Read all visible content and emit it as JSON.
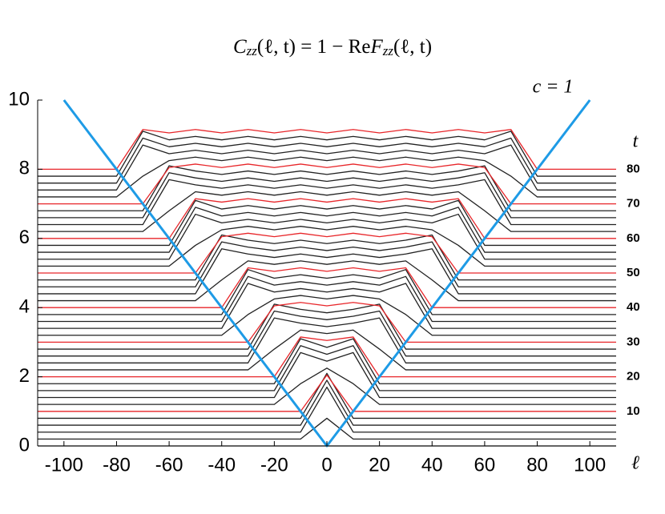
{
  "chart_data": {
    "type": "line",
    "title_parts": [
      "C",
      "zz",
      "(ℓ, t) = 1 − Re",
      "F",
      "zz",
      "(ℓ, t)"
    ],
    "annotation": "c = 1",
    "x_label": "ℓ",
    "y2_label": "t",
    "xlim": [
      -110,
      110
    ],
    "ylim": [
      0,
      10
    ],
    "y2lim": [
      0,
      100
    ],
    "xticks": [
      -100,
      -80,
      -60,
      -40,
      -20,
      0,
      20,
      40,
      60,
      80,
      100
    ],
    "yticks": [
      0,
      2,
      4,
      6,
      8,
      10
    ],
    "y2ticks": [
      10,
      20,
      30,
      40,
      50,
      60,
      70,
      80
    ],
    "lightcone": {
      "color": "#1e9be6",
      "x": [
        -100,
        0,
        100
      ],
      "values": [
        10,
        0,
        10
      ]
    },
    "x": [
      -110,
      -100,
      -90,
      -80,
      -70,
      -60,
      -50,
      -40,
      -30,
      -20,
      -10,
      0,
      10,
      20,
      30,
      40,
      50,
      60,
      70,
      80,
      90,
      100,
      110
    ],
    "series": [
      {
        "color": "#222222",
        "values": [
          0,
          0,
          0,
          0,
          0,
          0,
          0,
          0,
          0,
          0,
          0,
          0,
          0,
          0,
          0,
          0,
          0,
          0,
          0,
          0,
          0,
          0,
          0
        ]
      },
      {
        "color": "#222222",
        "values": [
          0.2,
          0.2,
          0.2,
          0.2,
          0.2,
          0.2,
          0.2,
          0.2,
          0.2,
          0.2,
          0.2,
          0.8,
          0.2,
          0.2,
          0.2,
          0.2,
          0.2,
          0.2,
          0.2,
          0.2,
          0.2,
          0.2,
          0.2
        ]
      },
      {
        "color": "#222222",
        "values": [
          0.4,
          0.4,
          0.4,
          0.4,
          0.4,
          0.4,
          0.4,
          0.4,
          0.4,
          0.4,
          0.4,
          1.7,
          0.4,
          0.4,
          0.4,
          0.4,
          0.4,
          0.4,
          0.4,
          0.4,
          0.4,
          0.4,
          0.4
        ]
      },
      {
        "color": "#222222",
        "values": [
          0.6,
          0.6,
          0.6,
          0.6,
          0.6,
          0.6,
          0.6,
          0.6,
          0.6,
          0.6,
          0.6,
          1.9,
          0.6,
          0.6,
          0.6,
          0.6,
          0.6,
          0.6,
          0.6,
          0.6,
          0.6,
          0.6,
          0.6
        ]
      },
      {
        "color": "#222222",
        "values": [
          0.8,
          0.8,
          0.8,
          0.8,
          0.8,
          0.8,
          0.8,
          0.8,
          0.8,
          0.8,
          0.8,
          2.1,
          0.8,
          0.8,
          0.8,
          0.8,
          0.8,
          0.8,
          0.8,
          0.8,
          0.8,
          0.8,
          0.8
        ]
      },
      {
        "color": "#e8262a",
        "values": [
          1,
          1,
          1,
          1,
          1,
          1,
          1,
          1,
          1,
          1,
          1,
          2.05,
          1,
          1,
          1,
          1,
          1,
          1,
          1,
          1,
          1,
          1,
          1
        ]
      },
      {
        "color": "#222222",
        "values": [
          1.2,
          1.2,
          1.2,
          1.2,
          1.2,
          1.2,
          1.2,
          1.2,
          1.2,
          1.2,
          1.8,
          2.25,
          1.8,
          1.2,
          1.2,
          1.2,
          1.2,
          1.2,
          1.2,
          1.2,
          1.2,
          1.2,
          1.2
        ]
      },
      {
        "color": "#222222",
        "values": [
          1.4,
          1.4,
          1.4,
          1.4,
          1.4,
          1.4,
          1.4,
          1.4,
          1.4,
          1.4,
          2.7,
          2.45,
          2.7,
          1.4,
          1.4,
          1.4,
          1.4,
          1.4,
          1.4,
          1.4,
          1.4,
          1.4,
          1.4
        ]
      },
      {
        "color": "#222222",
        "values": [
          1.6,
          1.6,
          1.6,
          1.6,
          1.6,
          1.6,
          1.6,
          1.6,
          1.6,
          1.6,
          2.9,
          2.65,
          2.9,
          1.6,
          1.6,
          1.6,
          1.6,
          1.6,
          1.6,
          1.6,
          1.6,
          1.6,
          1.6
        ]
      },
      {
        "color": "#222222",
        "values": [
          1.8,
          1.8,
          1.8,
          1.8,
          1.8,
          1.8,
          1.8,
          1.8,
          1.8,
          1.8,
          3.1,
          2.85,
          3.1,
          1.8,
          1.8,
          1.8,
          1.8,
          1.8,
          1.8,
          1.8,
          1.8,
          1.8,
          1.8
        ]
      },
      {
        "color": "#e8262a",
        "values": [
          2,
          2,
          2,
          2,
          2,
          2,
          2,
          2,
          2,
          2,
          3.15,
          3.05,
          3.15,
          2,
          2,
          2,
          2,
          2,
          2,
          2,
          2,
          2,
          2
        ]
      },
      {
        "color": "#222222",
        "values": [
          2.2,
          2.2,
          2.2,
          2.2,
          2.2,
          2.2,
          2.2,
          2.2,
          2.2,
          2.8,
          3.35,
          3.25,
          3.35,
          2.8,
          2.2,
          2.2,
          2.2,
          2.2,
          2.2,
          2.2,
          2.2,
          2.2,
          2.2
        ]
      },
      {
        "color": "#222222",
        "values": [
          2.4,
          2.4,
          2.4,
          2.4,
          2.4,
          2.4,
          2.4,
          2.4,
          2.4,
          3.7,
          3.55,
          3.45,
          3.55,
          3.7,
          2.4,
          2.4,
          2.4,
          2.4,
          2.4,
          2.4,
          2.4,
          2.4,
          2.4
        ]
      },
      {
        "color": "#222222",
        "values": [
          2.6,
          2.6,
          2.6,
          2.6,
          2.6,
          2.6,
          2.6,
          2.6,
          2.6,
          3.9,
          3.75,
          3.65,
          3.75,
          3.9,
          2.6,
          2.6,
          2.6,
          2.6,
          2.6,
          2.6,
          2.6,
          2.6,
          2.6
        ]
      },
      {
        "color": "#222222",
        "values": [
          2.8,
          2.8,
          2.8,
          2.8,
          2.8,
          2.8,
          2.8,
          2.8,
          2.8,
          4.1,
          3.95,
          3.85,
          3.95,
          4.1,
          2.8,
          2.8,
          2.8,
          2.8,
          2.8,
          2.8,
          2.8,
          2.8,
          2.8
        ]
      },
      {
        "color": "#e8262a",
        "values": [
          3,
          3,
          3,
          3,
          3,
          3,
          3,
          3,
          3,
          4.05,
          4.15,
          4.05,
          4.15,
          4.05,
          3,
          3,
          3,
          3,
          3,
          3,
          3,
          3,
          3
        ]
      },
      {
        "color": "#222222",
        "values": [
          3.2,
          3.2,
          3.2,
          3.2,
          3.2,
          3.2,
          3.2,
          3.2,
          3.8,
          4.25,
          4.35,
          4.25,
          4.35,
          4.25,
          3.8,
          3.2,
          3.2,
          3.2,
          3.2,
          3.2,
          3.2,
          3.2,
          3.2
        ]
      },
      {
        "color": "#222222",
        "values": [
          3.4,
          3.4,
          3.4,
          3.4,
          3.4,
          3.4,
          3.4,
          3.4,
          4.7,
          4.45,
          4.55,
          4.45,
          4.55,
          4.45,
          4.7,
          3.4,
          3.4,
          3.4,
          3.4,
          3.4,
          3.4,
          3.4,
          3.4
        ]
      },
      {
        "color": "#222222",
        "values": [
          3.6,
          3.6,
          3.6,
          3.6,
          3.6,
          3.6,
          3.6,
          3.6,
          4.9,
          4.65,
          4.75,
          4.65,
          4.75,
          4.65,
          4.9,
          3.6,
          3.6,
          3.6,
          3.6,
          3.6,
          3.6,
          3.6,
          3.6
        ]
      },
      {
        "color": "#222222",
        "values": [
          3.8,
          3.8,
          3.8,
          3.8,
          3.8,
          3.8,
          3.8,
          3.8,
          5.1,
          4.85,
          4.95,
          4.85,
          4.95,
          4.85,
          5.1,
          3.8,
          3.8,
          3.8,
          3.8,
          3.8,
          3.8,
          3.8,
          3.8
        ]
      },
      {
        "color": "#e8262a",
        "values": [
          4,
          4,
          4,
          4,
          4,
          4,
          4,
          4,
          5.15,
          5.05,
          5.15,
          5.05,
          5.15,
          5.05,
          5.15,
          4,
          4,
          4,
          4,
          4,
          4,
          4,
          4
        ]
      },
      {
        "color": "#222222",
        "values": [
          4.2,
          4.2,
          4.2,
          4.2,
          4.2,
          4.2,
          4.2,
          4.8,
          5.35,
          5.25,
          5.35,
          5.25,
          5.35,
          5.25,
          5.35,
          4.8,
          4.2,
          4.2,
          4.2,
          4.2,
          4.2,
          4.2,
          4.2
        ]
      },
      {
        "color": "#222222",
        "values": [
          4.4,
          4.4,
          4.4,
          4.4,
          4.4,
          4.4,
          4.4,
          5.7,
          5.55,
          5.45,
          5.55,
          5.45,
          5.55,
          5.45,
          5.55,
          5.7,
          4.4,
          4.4,
          4.4,
          4.4,
          4.4,
          4.4,
          4.4
        ]
      },
      {
        "color": "#222222",
        "values": [
          4.6,
          4.6,
          4.6,
          4.6,
          4.6,
          4.6,
          4.6,
          5.9,
          5.75,
          5.65,
          5.75,
          5.65,
          5.75,
          5.65,
          5.75,
          5.9,
          4.6,
          4.6,
          4.6,
          4.6,
          4.6,
          4.6,
          4.6
        ]
      },
      {
        "color": "#222222",
        "values": [
          4.8,
          4.8,
          4.8,
          4.8,
          4.8,
          4.8,
          4.8,
          6.1,
          5.95,
          5.85,
          5.95,
          5.85,
          5.95,
          5.85,
          5.95,
          6.1,
          4.8,
          4.8,
          4.8,
          4.8,
          4.8,
          4.8,
          4.8
        ]
      },
      {
        "color": "#e8262a",
        "values": [
          5,
          5,
          5,
          5,
          5,
          5,
          5,
          6.05,
          6.15,
          6.05,
          6.15,
          6.05,
          6.15,
          6.05,
          6.15,
          6.05,
          5,
          5,
          5,
          5,
          5,
          5,
          5
        ]
      },
      {
        "color": "#222222",
        "values": [
          5.2,
          5.2,
          5.2,
          5.2,
          5.2,
          5.2,
          5.8,
          6.25,
          6.35,
          6.25,
          6.35,
          6.25,
          6.35,
          6.25,
          6.35,
          6.25,
          5.8,
          5.2,
          5.2,
          5.2,
          5.2,
          5.2,
          5.2
        ]
      },
      {
        "color": "#222222",
        "values": [
          5.4,
          5.4,
          5.4,
          5.4,
          5.4,
          5.4,
          6.7,
          6.45,
          6.55,
          6.45,
          6.55,
          6.45,
          6.55,
          6.45,
          6.55,
          6.45,
          6.7,
          5.4,
          5.4,
          5.4,
          5.4,
          5.4,
          5.4
        ]
      },
      {
        "color": "#222222",
        "values": [
          5.6,
          5.6,
          5.6,
          5.6,
          5.6,
          5.6,
          6.9,
          6.65,
          6.75,
          6.65,
          6.75,
          6.65,
          6.75,
          6.65,
          6.75,
          6.65,
          6.9,
          5.6,
          5.6,
          5.6,
          5.6,
          5.6,
          5.6
        ]
      },
      {
        "color": "#222222",
        "values": [
          5.8,
          5.8,
          5.8,
          5.8,
          5.8,
          5.8,
          7.1,
          6.85,
          6.95,
          6.85,
          6.95,
          6.85,
          6.95,
          6.85,
          6.95,
          6.85,
          7.1,
          5.8,
          5.8,
          5.8,
          5.8,
          5.8,
          5.8
        ]
      },
      {
        "color": "#e8262a",
        "values": [
          6,
          6,
          6,
          6,
          6,
          6,
          7.15,
          7.05,
          7.15,
          7.05,
          7.15,
          7.05,
          7.15,
          7.05,
          7.15,
          7.05,
          7.15,
          6,
          6,
          6,
          6,
          6,
          6
        ]
      },
      {
        "color": "#222222",
        "values": [
          6.2,
          6.2,
          6.2,
          6.2,
          6.2,
          6.8,
          7.35,
          7.25,
          7.35,
          7.25,
          7.35,
          7.25,
          7.35,
          7.25,
          7.35,
          7.25,
          7.35,
          6.8,
          6.2,
          6.2,
          6.2,
          6.2,
          6.2
        ]
      },
      {
        "color": "#222222",
        "values": [
          6.4,
          6.4,
          6.4,
          6.4,
          6.4,
          7.7,
          7.55,
          7.45,
          7.55,
          7.45,
          7.55,
          7.45,
          7.55,
          7.45,
          7.55,
          7.45,
          7.55,
          7.7,
          6.4,
          6.4,
          6.4,
          6.4,
          6.4
        ]
      },
      {
        "color": "#222222",
        "values": [
          6.6,
          6.6,
          6.6,
          6.6,
          6.6,
          7.9,
          7.75,
          7.65,
          7.75,
          7.65,
          7.75,
          7.65,
          7.75,
          7.65,
          7.75,
          7.65,
          7.75,
          7.9,
          6.6,
          6.6,
          6.6,
          6.6,
          6.6
        ]
      },
      {
        "color": "#222222",
        "values": [
          6.8,
          6.8,
          6.8,
          6.8,
          6.8,
          8.1,
          7.95,
          7.85,
          7.95,
          7.85,
          7.95,
          7.85,
          7.95,
          7.85,
          7.95,
          7.85,
          7.95,
          8.1,
          6.8,
          6.8,
          6.8,
          6.8,
          6.8
        ]
      },
      {
        "color": "#e8262a",
        "values": [
          7,
          7,
          7,
          7,
          7,
          8.05,
          8.15,
          8.05,
          8.15,
          8.05,
          8.15,
          8.05,
          8.15,
          8.05,
          8.15,
          8.05,
          8.15,
          8.05,
          7,
          7,
          7,
          7,
          7
        ]
      },
      {
        "color": "#222222",
        "values": [
          7.2,
          7.2,
          7.2,
          7.2,
          7.8,
          8.25,
          8.35,
          8.25,
          8.35,
          8.25,
          8.35,
          8.25,
          8.35,
          8.25,
          8.35,
          8.25,
          8.35,
          8.25,
          7.8,
          7.2,
          7.2,
          7.2,
          7.2
        ]
      },
      {
        "color": "#222222",
        "values": [
          7.4,
          7.4,
          7.4,
          7.4,
          8.7,
          8.45,
          8.55,
          8.45,
          8.55,
          8.45,
          8.55,
          8.45,
          8.55,
          8.45,
          8.55,
          8.45,
          8.55,
          8.45,
          8.7,
          7.4,
          7.4,
          7.4,
          7.4
        ]
      },
      {
        "color": "#222222",
        "values": [
          7.6,
          7.6,
          7.6,
          7.6,
          8.9,
          8.65,
          8.75,
          8.65,
          8.75,
          8.65,
          8.75,
          8.65,
          8.75,
          8.65,
          8.75,
          8.65,
          8.75,
          8.65,
          8.9,
          7.6,
          7.6,
          7.6,
          7.6
        ]
      },
      {
        "color": "#222222",
        "values": [
          7.8,
          7.8,
          7.8,
          7.8,
          9.1,
          8.85,
          8.95,
          8.85,
          8.95,
          8.85,
          8.95,
          8.85,
          8.95,
          8.85,
          8.95,
          8.85,
          8.95,
          8.85,
          9.1,
          7.8,
          7.8,
          7.8,
          7.8
        ]
      },
      {
        "color": "#e8262a",
        "values": [
          8,
          8,
          8,
          8,
          9.15,
          9.05,
          9.15,
          9.05,
          9.15,
          9.05,
          9.15,
          9.05,
          9.15,
          9.05,
          9.15,
          9.05,
          9.15,
          9.05,
          9.15,
          8,
          8,
          8,
          8
        ]
      }
    ]
  }
}
